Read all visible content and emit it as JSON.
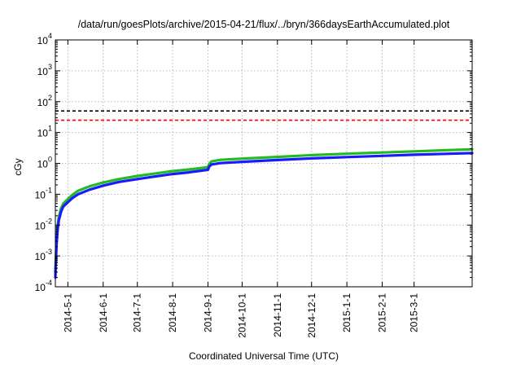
{
  "chart_data": {
    "type": "line",
    "title": "/data/run/goesPlots/archive/2015-04-21/flux/../bryn/366daysEarthAccumulated.plot",
    "xlabel": "Coordinated Universal Time (UTC)",
    "ylabel": "cGy",
    "yscale": "log",
    "ylim": [
      0.0001,
      10000
    ],
    "xlim": [
      "2014-04-20",
      "2015-04-21"
    ],
    "grid": true,
    "legend": "none",
    "y_ticks": [
      {
        "value": 0.0001,
        "base": "10",
        "exp": "-4"
      },
      {
        "value": 0.001,
        "base": "10",
        "exp": "-3"
      },
      {
        "value": 0.01,
        "base": "10",
        "exp": "-2"
      },
      {
        "value": 0.1,
        "base": "10",
        "exp": "-1"
      },
      {
        "value": 1,
        "base": "10",
        "exp": "0"
      },
      {
        "value": 10,
        "base": "10",
        "exp": "1"
      },
      {
        "value": 100,
        "base": "10",
        "exp": "2"
      },
      {
        "value": 1000,
        "base": "10",
        "exp": "3"
      },
      {
        "value": 10000,
        "base": "10",
        "exp": "4"
      }
    ],
    "x_ticks": [
      {
        "date": "2014-05-01",
        "label": "2014-5-1"
      },
      {
        "date": "2014-06-01",
        "label": "2014-6-1"
      },
      {
        "date": "2014-07-01",
        "label": "2014-7-1"
      },
      {
        "date": "2014-08-01",
        "label": "2014-8-1"
      },
      {
        "date": "2014-09-01",
        "label": "2014-9-1"
      },
      {
        "date": "2014-10-01",
        "label": "2014-10-1"
      },
      {
        "date": "2014-11-01",
        "label": "2014-11-1"
      },
      {
        "date": "2014-12-01",
        "label": "2014-12-1"
      },
      {
        "date": "2015-01-01",
        "label": "2015-1-1"
      },
      {
        "date": "2015-02-01",
        "label": "2015-2-1"
      },
      {
        "date": "2015-03-01",
        "label": "2015-3-1"
      }
    ],
    "reference_lines": [
      {
        "value": 50,
        "color": "#000000",
        "style": "dashed"
      },
      {
        "value": 25,
        "color": "#ff0000",
        "style": "dashed"
      }
    ],
    "series": [
      {
        "color": "#22bb22",
        "x": [
          "2014-04-20",
          "2014-04-21",
          "2014-04-22",
          "2014-04-23",
          "2014-04-25",
          "2014-04-27",
          "2014-05-01",
          "2014-05-05",
          "2014-05-10",
          "2014-05-20",
          "2014-06-01",
          "2014-06-15",
          "2014-07-01",
          "2014-07-15",
          "2014-08-01",
          "2014-08-15",
          "2014-09-01",
          "2014-09-02",
          "2014-09-04",
          "2014-09-12",
          "2014-10-01",
          "2014-11-01",
          "2014-12-01",
          "2015-01-01",
          "2015-02-01",
          "2015-03-01",
          "2015-04-01",
          "2015-04-21"
        ],
        "values": [
          0.0003,
          0.003,
          0.009,
          0.018,
          0.035,
          0.05,
          0.07,
          0.095,
          0.13,
          0.18,
          0.24,
          0.31,
          0.39,
          0.46,
          0.56,
          0.63,
          0.75,
          0.95,
          1.15,
          1.3,
          1.42,
          1.62,
          1.85,
          2.05,
          2.25,
          2.45,
          2.7,
          2.85
        ]
      },
      {
        "color": "#1a1aff",
        "x": [
          "2014-04-20",
          "2014-04-21",
          "2014-04-22",
          "2014-04-23",
          "2014-04-25",
          "2014-04-27",
          "2014-05-01",
          "2014-05-05",
          "2014-05-10",
          "2014-05-20",
          "2014-06-01",
          "2014-06-15",
          "2014-07-01",
          "2014-07-15",
          "2014-08-01",
          "2014-08-15",
          "2014-09-01",
          "2014-09-02",
          "2014-09-04",
          "2014-09-12",
          "2014-10-01",
          "2014-11-01",
          "2014-12-01",
          "2015-01-01",
          "2015-02-01",
          "2015-03-01",
          "2015-04-01",
          "2015-04-21"
        ],
        "values": [
          0.0002,
          0.0022,
          0.007,
          0.014,
          0.027,
          0.04,
          0.055,
          0.075,
          0.1,
          0.14,
          0.19,
          0.25,
          0.31,
          0.37,
          0.45,
          0.51,
          0.62,
          0.78,
          0.92,
          1.02,
          1.12,
          1.28,
          1.45,
          1.6,
          1.75,
          1.9,
          2.05,
          2.15
        ]
      }
    ]
  }
}
